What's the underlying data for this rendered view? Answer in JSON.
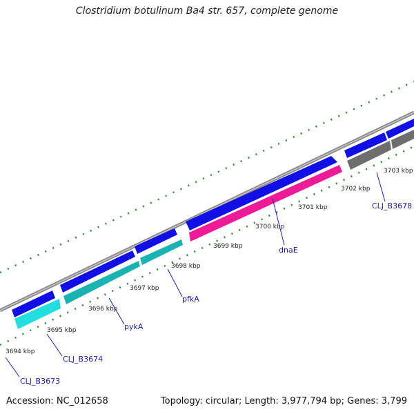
{
  "title": "Clostridium botulinum Ba4 str. 657, complete genome",
  "footer": {
    "accession": "Accession: NC_012658",
    "summary": "Topology: circular; Length: 3,977,794 bp; Genes: 3,799"
  },
  "scale": {
    "ticks": [
      "3694 kbp",
      "3695 kbp",
      "3696 kbp",
      "3697 kbp",
      "3698 kbp",
      "3699 kbp",
      "3700 kbp",
      "3701 kbp",
      "3702 kbp",
      "3703 kbp"
    ]
  },
  "genes": [
    {
      "name": "CLJ_B3673"
    },
    {
      "name": "CLJ_B3674"
    },
    {
      "name": "pykA"
    },
    {
      "name": "pfkA"
    },
    {
      "name": "dnaE"
    },
    {
      "name": "CLJ_B3678"
    }
  ],
  "colors": {
    "backbone": "#8a8a8a",
    "forward_strand": "#1010e6",
    "cyan_gene": "#22dede",
    "teal_gene": "#1ab3b3",
    "dnaE": "#ee1a96",
    "gray_gene": "#6e6e6e",
    "tick_mark": "#2e8b2e"
  }
}
